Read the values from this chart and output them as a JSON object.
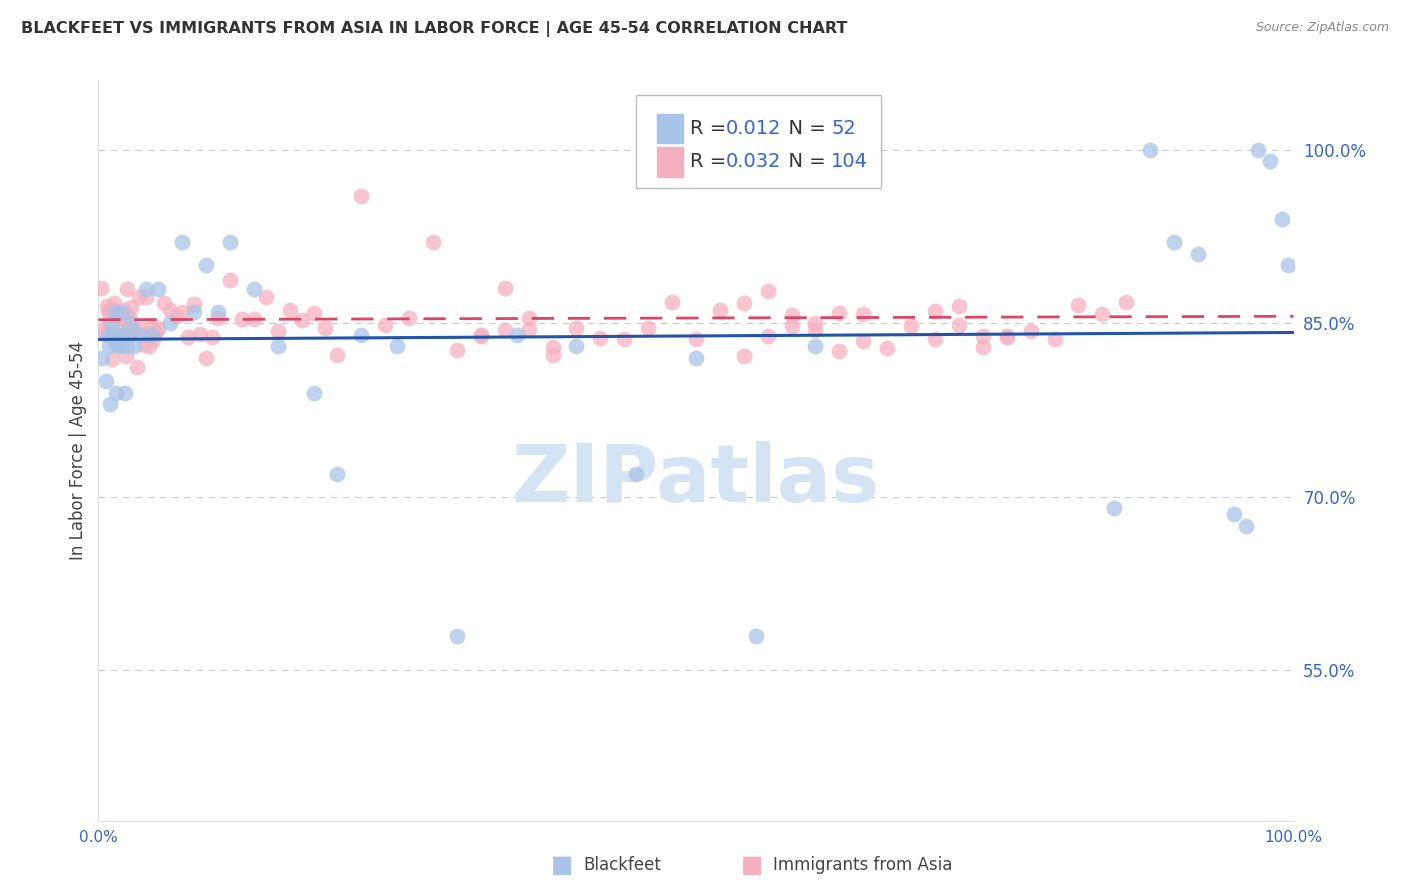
{
  "title": "BLACKFEET VS IMMIGRANTS FROM ASIA IN LABOR FORCE | AGE 45-54 CORRELATION CHART",
  "source": "Source: ZipAtlas.com",
  "ylabel": "In Labor Force | Age 45-54",
  "xlim": [
    0.0,
    1.0
  ],
  "ylim": [
    0.42,
    1.06
  ],
  "yticks": [
    0.55,
    0.7,
    0.85,
    1.0
  ],
  "ytick_labels": [
    "55.0%",
    "70.0%",
    "85.0%",
    "100.0%"
  ],
  "xticks": [
    0.0,
    0.2,
    0.4,
    0.6,
    0.8,
    1.0
  ],
  "xtick_labels": [
    "0.0%",
    "",
    "",
    "",
    "",
    "100.0%"
  ],
  "blue_R": 0.012,
  "blue_N": 52,
  "pink_R": 0.032,
  "pink_N": 104,
  "blue_line_y0": 0.836,
  "blue_line_y1": 0.842,
  "pink_line_y0": 0.853,
  "pink_line_y1": 0.856,
  "blue_color": "#a8c4e8",
  "pink_color": "#f5b0c0",
  "blue_line_color": "#2255aa",
  "pink_line_color": "#dd4466",
  "axis_color": "#3366cc",
  "grid_color": "#cccccc",
  "title_color": "#333333",
  "watermark_color": "#d5e4f5",
  "legend_label_1": "Blackfeet",
  "legend_label_2": "Immigrants from Asia",
  "blue_scatter_x": [
    0.003,
    0.006,
    0.008,
    0.009,
    0.01,
    0.011,
    0.012,
    0.014,
    0.015,
    0.016,
    0.017,
    0.018,
    0.019,
    0.02,
    0.022,
    0.024,
    0.025,
    0.027,
    0.03,
    0.035,
    0.04,
    0.045,
    0.05,
    0.06,
    0.07,
    0.08,
    0.09,
    0.1,
    0.11,
    0.13,
    0.15,
    0.18,
    0.2,
    0.22,
    0.25,
    0.3,
    0.35,
    0.4,
    0.45,
    0.5,
    0.55,
    0.6,
    0.85,
    0.88,
    0.9,
    0.92,
    0.95,
    0.96,
    0.97,
    0.98,
    0.99,
    0.995
  ],
  "blue_scatter_y": [
    0.82,
    0.8,
    0.84,
    0.83,
    0.78,
    0.85,
    0.84,
    0.86,
    0.79,
    0.83,
    0.84,
    0.83,
    0.86,
    0.84,
    0.79,
    0.83,
    0.84,
    0.85,
    0.83,
    0.84,
    0.88,
    0.84,
    0.88,
    0.85,
    0.92,
    0.86,
    0.9,
    0.86,
    0.92,
    0.88,
    0.83,
    0.79,
    0.72,
    0.84,
    0.83,
    0.58,
    0.84,
    0.83,
    0.72,
    0.82,
    0.58,
    0.83,
    0.69,
    1.0,
    0.92,
    0.91,
    0.685,
    0.675,
    1.0,
    0.99,
    0.94,
    0.9
  ],
  "pink_scatter_x": [
    0.002,
    0.004,
    0.006,
    0.007,
    0.008,
    0.009,
    0.01,
    0.011,
    0.012,
    0.013,
    0.014,
    0.015,
    0.016,
    0.017,
    0.018,
    0.019,
    0.02,
    0.021,
    0.022,
    0.023,
    0.024,
    0.025,
    0.026,
    0.027,
    0.028,
    0.029,
    0.03,
    0.032,
    0.034,
    0.036,
    0.038,
    0.04,
    0.042,
    0.044,
    0.046,
    0.048,
    0.05,
    0.055,
    0.06,
    0.065,
    0.07,
    0.075,
    0.08,
    0.085,
    0.09,
    0.095,
    0.1,
    0.11,
    0.12,
    0.13,
    0.14,
    0.15,
    0.16,
    0.17,
    0.18,
    0.19,
    0.2,
    0.22,
    0.24,
    0.26,
    0.28,
    0.3,
    0.32,
    0.34,
    0.36,
    0.38,
    0.4,
    0.42,
    0.44,
    0.46,
    0.48,
    0.5,
    0.52,
    0.54,
    0.56,
    0.58,
    0.6,
    0.62,
    0.64,
    0.66,
    0.68,
    0.7,
    0.72,
    0.74,
    0.76,
    0.78,
    0.8,
    0.82,
    0.84,
    0.86,
    0.7,
    0.72,
    0.74,
    0.76,
    0.54,
    0.56,
    0.58,
    0.6,
    0.62,
    0.64,
    0.32,
    0.34,
    0.36,
    0.38
  ],
  "pink_scatter_y": [
    0.86,
    0.85,
    0.84,
    0.86,
    0.87,
    0.85,
    0.86,
    0.84,
    0.85,
    0.86,
    0.84,
    0.86,
    0.85,
    0.84,
    0.86,
    0.85,
    0.84,
    0.86,
    0.85,
    0.84,
    0.86,
    0.85,
    0.86,
    0.84,
    0.85,
    0.86,
    0.85,
    0.84,
    0.86,
    0.85,
    0.84,
    0.86,
    0.85,
    0.84,
    0.86,
    0.85,
    0.86,
    0.85,
    0.84,
    0.86,
    0.85,
    0.84,
    0.86,
    0.85,
    0.84,
    0.86,
    0.85,
    0.86,
    0.85,
    0.86,
    0.85,
    0.84,
    0.86,
    0.85,
    0.86,
    0.85,
    0.84,
    0.86,
    0.85,
    0.84,
    0.86,
    0.85,
    0.84,
    0.86,
    0.85,
    0.84,
    0.86,
    0.85,
    0.84,
    0.86,
    0.85,
    0.84,
    0.86,
    0.85,
    0.86,
    0.85,
    0.84,
    0.85,
    0.86,
    0.85,
    0.84,
    0.85,
    0.86,
    0.85,
    0.84,
    0.85,
    0.84,
    0.85,
    0.84,
    0.86,
    0.83,
    0.84,
    0.83,
    0.84,
    0.83,
    0.84,
    0.83,
    0.84,
    0.83,
    0.84,
    0.85,
    0.84,
    0.85,
    0.84
  ]
}
